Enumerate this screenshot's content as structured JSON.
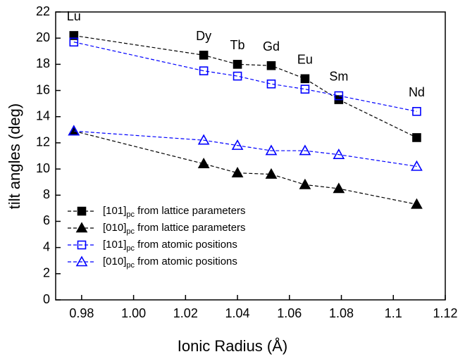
{
  "chart_data": {
    "type": "scatter",
    "xlabel": "Ionic Radius (Å)",
    "ylabel": "tilt angles (deg)",
    "x": [
      0.977,
      1.027,
      1.04,
      1.053,
      1.066,
      1.079,
      1.109
    ],
    "point_labels": [
      "Lu",
      "Dy",
      "Tb",
      "Gd",
      "Eu",
      "Sm",
      "Nd"
    ],
    "xlim": [
      0.97,
      1.12
    ],
    "ylim": [
      0,
      22
    ],
    "xticks": [
      {
        "value": 0.98,
        "label": "0.98"
      },
      {
        "value": 1.0,
        "label": "1.00"
      },
      1.02,
      1.04,
      1.06,
      1.08,
      1.1,
      1.12
    ],
    "yticks": [
      0,
      2,
      4,
      6,
      8,
      10,
      12,
      14,
      16,
      18,
      20,
      22
    ],
    "legend": "lower left",
    "series": [
      {
        "name": "[101]pc from lattice parameters",
        "color": "#000000",
        "marker": "square",
        "filled": true,
        "values": [
          20.2,
          18.7,
          18.0,
          17.9,
          16.9,
          15.3,
          12.4
        ]
      },
      {
        "name": "[010]pc from lattice parameters",
        "color": "#000000",
        "marker": "triangle",
        "filled": true,
        "values": [
          12.9,
          10.4,
          9.7,
          9.6,
          8.8,
          8.5,
          7.3
        ]
      },
      {
        "name": "[101]pc from atomic positions",
        "color": "#0000ff",
        "marker": "square",
        "filled": false,
        "values": [
          19.7,
          17.5,
          17.1,
          16.5,
          16.1,
          15.6,
          14.4
        ]
      },
      {
        "name": "[010]pc from atomic positions",
        "color": "#0000ff",
        "marker": "triangle",
        "filled": false,
        "values": [
          12.9,
          12.2,
          11.8,
          11.4,
          11.4,
          11.1,
          10.2
        ]
      }
    ]
  }
}
